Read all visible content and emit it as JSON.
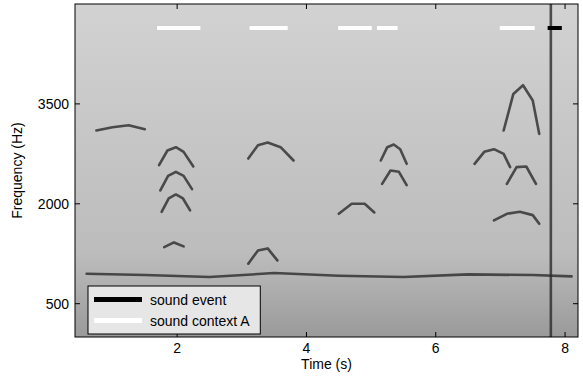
{
  "chart_data": {
    "type": "spectrogram",
    "x_label": "Time (s)",
    "y_label": "Frequency (Hz)",
    "xlim": [
      0.42,
      8.2
    ],
    "ylim": [
      0,
      5000
    ],
    "xticks": [
      2,
      4,
      6,
      8
    ],
    "yticks": [
      500,
      2000,
      3500
    ],
    "legend": "lower left",
    "series": [
      {
        "name": "sound event",
        "color": "#000000",
        "y": 4640,
        "segments": [
          [
            7.73,
            7.95
          ]
        ]
      },
      {
        "name": "sound context A",
        "color": "#ffffff",
        "y": 4640,
        "segments": [
          [
            1.69,
            2.36
          ],
          [
            3.12,
            3.71
          ],
          [
            4.49,
            5.01
          ],
          [
            5.09,
            5.41
          ],
          [
            6.99,
            7.53
          ]
        ]
      }
    ],
    "contours": [
      {
        "x": [
          0.75,
          1.0,
          1.25,
          1.5
        ],
        "y": [
          3100,
          3150,
          3180,
          3120
        ]
      },
      {
        "x": [
          1.72,
          1.85,
          1.98,
          2.1,
          2.25
        ],
        "y": [
          2580,
          2800,
          2850,
          2780,
          2560
        ]
      },
      {
        "x": [
          1.74,
          1.86,
          1.98,
          2.1,
          2.23
        ],
        "y": [
          2200,
          2420,
          2480,
          2420,
          2220
        ]
      },
      {
        "x": [
          1.76,
          1.87,
          1.98,
          2.09,
          2.2
        ],
        "y": [
          1880,
          2080,
          2140,
          2080,
          1900
        ]
      },
      {
        "x": [
          1.8,
          1.95,
          2.1
        ],
        "y": [
          1350,
          1420,
          1360
        ]
      },
      {
        "x": [
          0.6,
          1.5,
          2.5,
          3.5,
          4.5,
          5.5,
          6.5,
          7.5,
          8.1
        ],
        "y": [
          950,
          930,
          900,
          960,
          920,
          900,
          940,
          930,
          910
        ]
      },
      {
        "x": [
          3.1,
          3.25,
          3.4,
          3.6,
          3.8
        ],
        "y": [
          2680,
          2880,
          2920,
          2850,
          2650
        ]
      },
      {
        "x": [
          3.1,
          3.25,
          3.4,
          3.55
        ],
        "y": [
          1100,
          1300,
          1330,
          1150
        ]
      },
      {
        "x": [
          5.15,
          5.25,
          5.35,
          5.45,
          5.55
        ],
        "y": [
          2650,
          2850,
          2890,
          2820,
          2600
        ]
      },
      {
        "x": [
          5.17,
          5.3,
          5.43,
          5.55
        ],
        "y": [
          2300,
          2500,
          2480,
          2280
        ]
      },
      {
        "x": [
          6.6,
          6.75,
          6.9,
          7.05,
          7.15
        ],
        "y": [
          2600,
          2780,
          2820,
          2750,
          2550
        ]
      },
      {
        "x": [
          7.05,
          7.2,
          7.35,
          7.5,
          7.6
        ],
        "y": [
          3100,
          3650,
          3780,
          3550,
          3050
        ]
      },
      {
        "x": [
          7.1,
          7.25,
          7.4,
          7.55
        ],
        "y": [
          2300,
          2550,
          2560,
          2300
        ]
      },
      {
        "x": [
          6.9,
          7.1,
          7.3,
          7.5,
          7.6
        ],
        "y": [
          1750,
          1850,
          1880,
          1830,
          1700
        ]
      },
      {
        "x": [
          4.5,
          4.7,
          4.9,
          5.05
        ],
        "y": [
          1850,
          2000,
          2000,
          1870
        ]
      },
      {
        "x": [
          7.78,
          7.78
        ],
        "y": [
          0,
          5000
        ]
      }
    ]
  }
}
